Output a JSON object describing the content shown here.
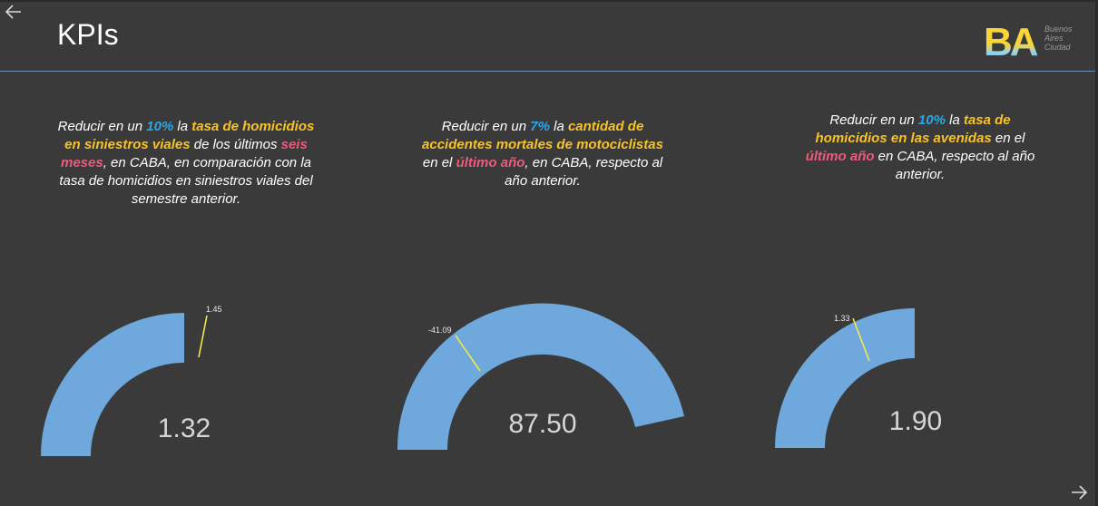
{
  "header": {
    "title": "KPIs",
    "logo": {
      "mark": "BA",
      "lines": [
        "Buenos",
        "Aires",
        "Ciudad"
      ]
    }
  },
  "nav": {
    "back_icon": "arrow-left-icon",
    "next_icon": "arrow-right-icon"
  },
  "colors": {
    "background": "#3a3a3a",
    "gauge_fill": "#6fa8dc",
    "target_line": "#f2e94e",
    "percent": "#28a9e6",
    "highlight": "#f7c22a",
    "period": "#ee5a7a"
  },
  "kpis": [
    {
      "segments": [
        "Reducir en un ",
        "10%",
        " la ",
        "tasa de homicidios en siniestros viales",
        " de los últimos ",
        "seis meses",
        ", en CABA, en comparación con la tasa de homicidios en siniestros viales del semestre anterior."
      ],
      "value": "1.32",
      "target": "1.45",
      "gauge": {
        "min": 0,
        "max": 2.64,
        "value": 1.32,
        "target": 1.45
      }
    },
    {
      "segments": [
        "Reducir en un ",
        "7%",
        " la ",
        "cantidad de accidentes mortales de motociclistas",
        " en el ",
        "último año",
        ", en CABA, respecto al año anterior."
      ],
      "value": "87.50",
      "target": "-41.09",
      "gauge": {
        "min": -50,
        "max": 80,
        "value": 87.5,
        "target": -41.09
      }
    },
    {
      "segments": [
        "Reducir en un ",
        "10%",
        " la  ",
        "tasa de homicidios  en las avenidas",
        " en el ",
        "último año",
        "  en CABA, respecto al año anterior."
      ],
      "value": "1.90",
      "target": "1.33",
      "gauge": {
        "min": 0,
        "max": 1.9,
        "value": 1.9,
        "target": 1.33
      }
    }
  ]
}
